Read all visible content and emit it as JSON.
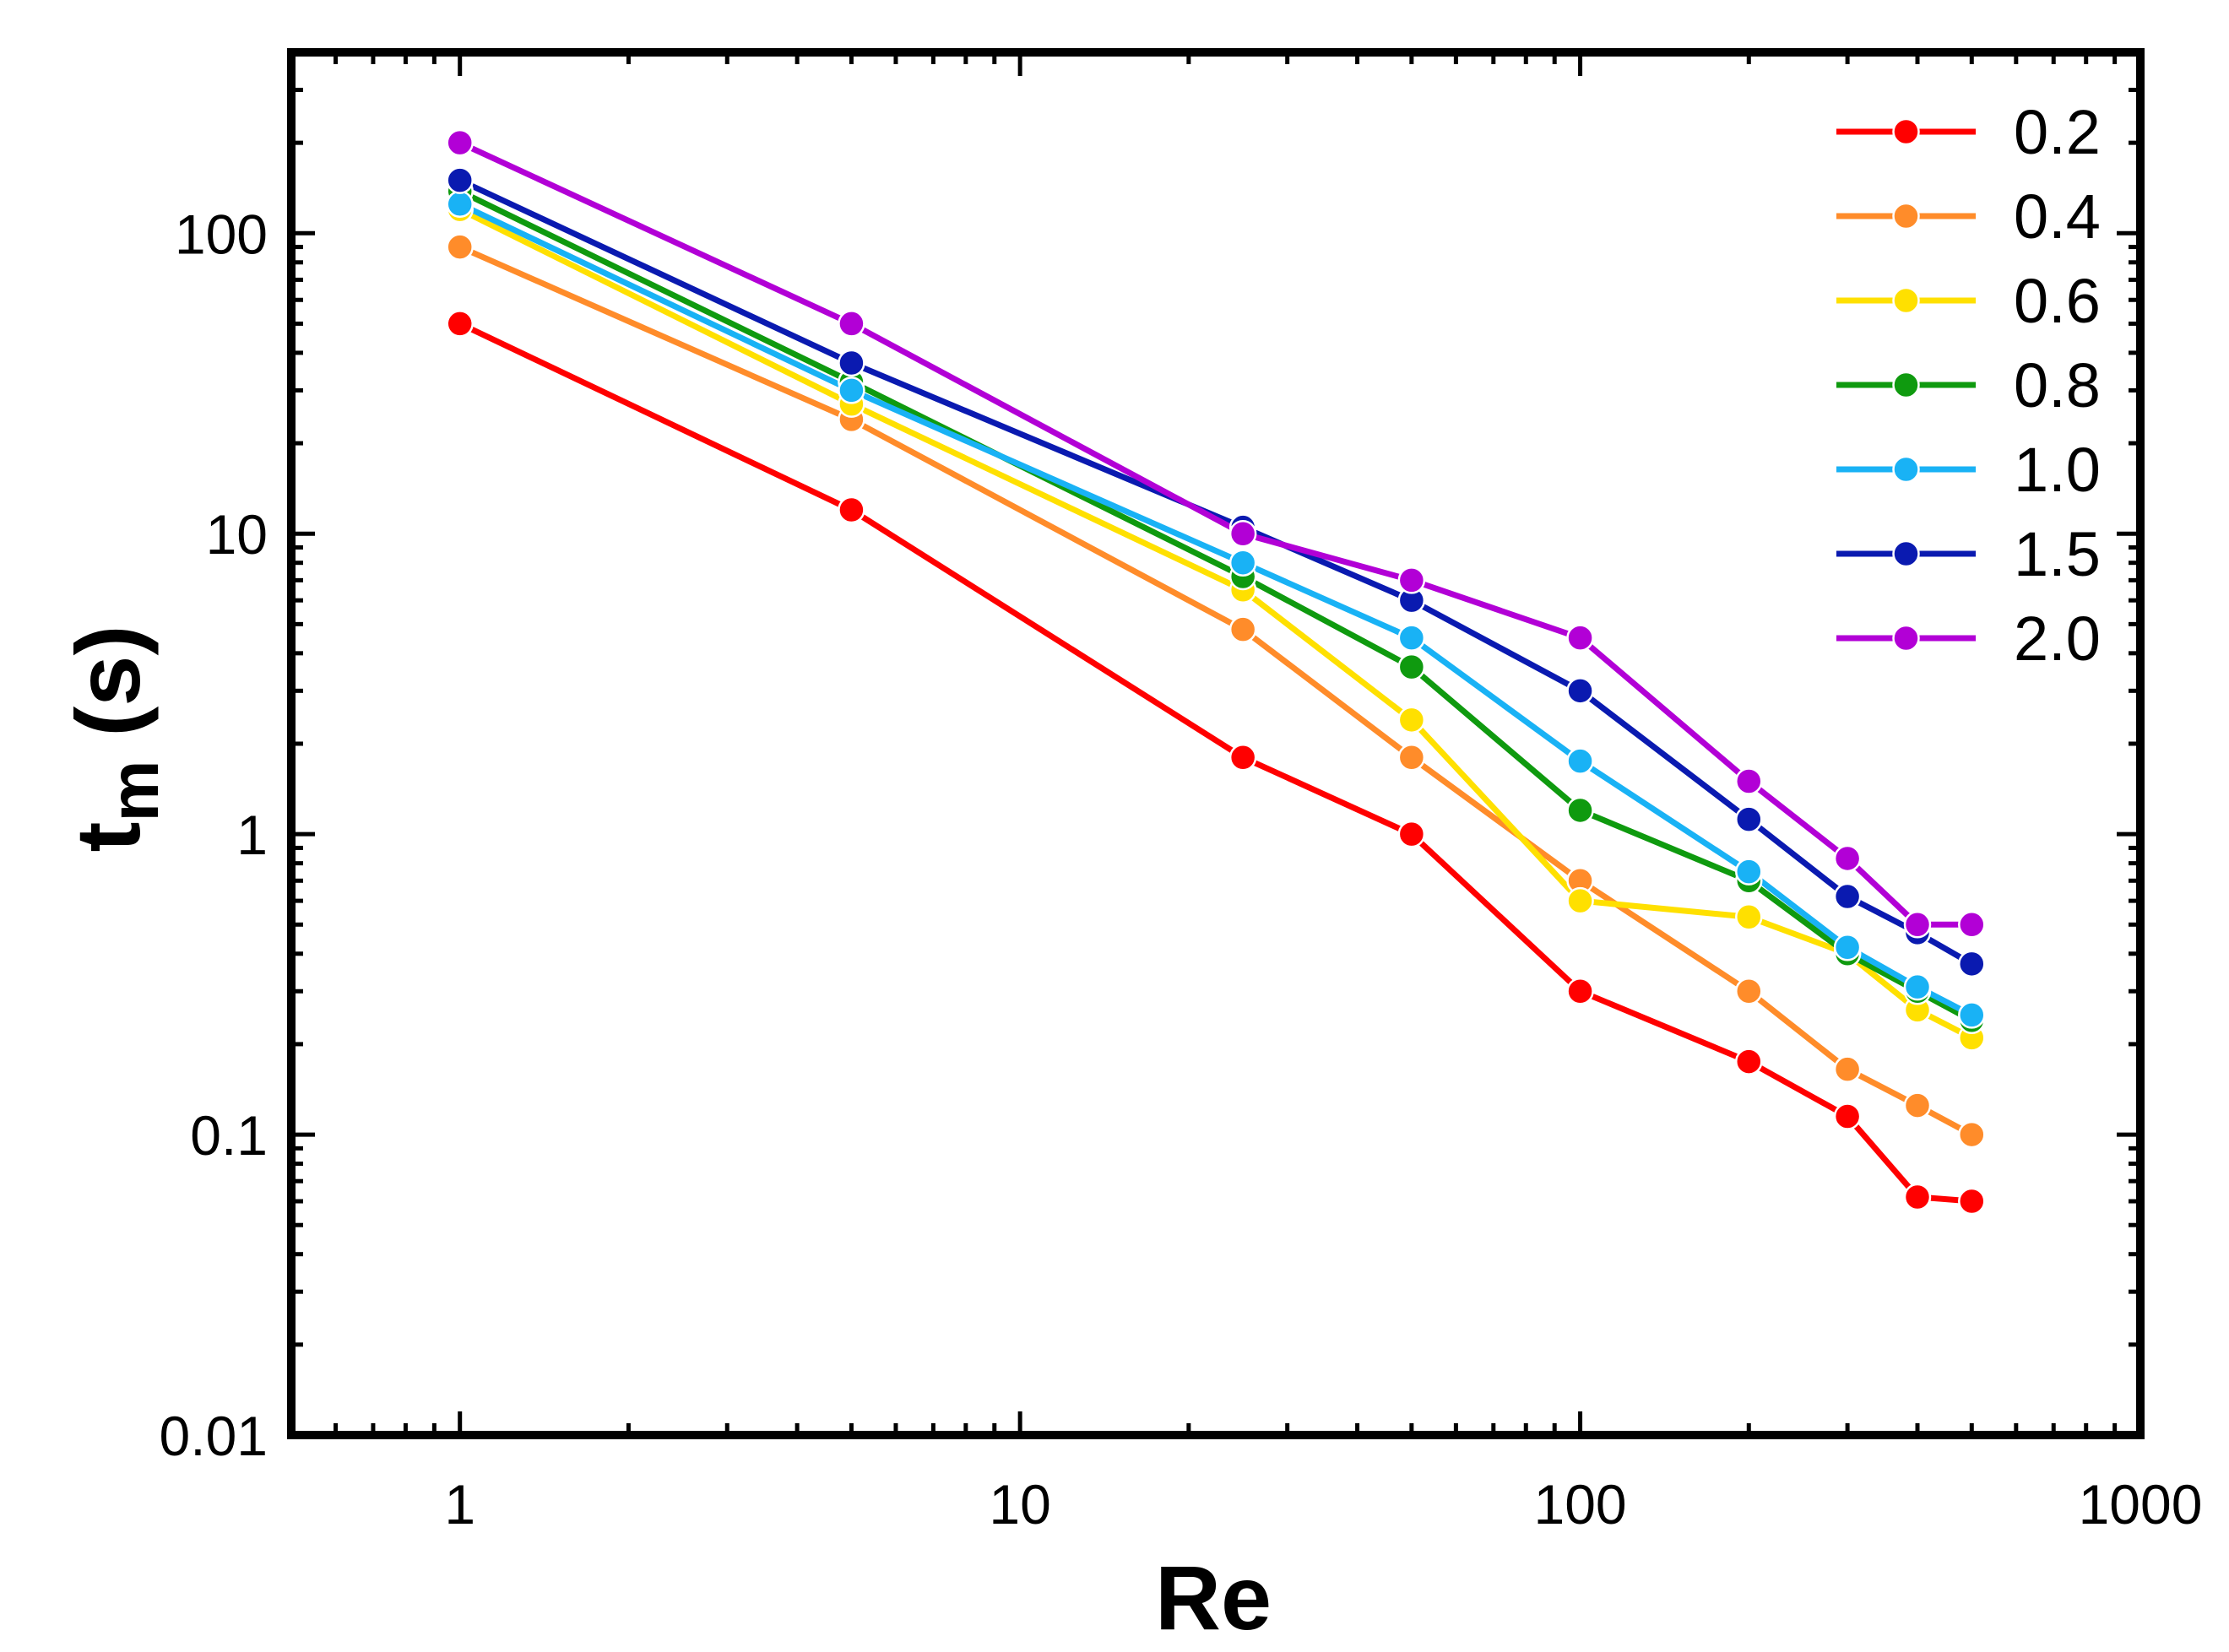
{
  "chart_data": {
    "type": "line",
    "title": "",
    "xlabel": "Re",
    "ylabel_main": "t",
    "ylabel_sub": "m",
    "ylabel_unit": "(s)",
    "xscale": "log",
    "yscale": "log",
    "xlim": [
      0.5,
      1000
    ],
    "ylim": [
      0.01,
      400
    ],
    "x_ticks": [
      1,
      10,
      100,
      1000
    ],
    "x_tick_labels": [
      "1",
      "10",
      "100",
      "1000"
    ],
    "y_ticks": [
      0.01,
      0.1,
      1,
      10,
      100
    ],
    "y_tick_labels": [
      "0.01",
      "0.1",
      "1",
      "10",
      "100"
    ],
    "legend_position": "top-right",
    "x": [
      1,
      5,
      25,
      50,
      100,
      200,
      300,
      400,
      500
    ],
    "series": [
      {
        "name": "0.2",
        "color": "#ff0000",
        "values": [
          50,
          12,
          1.8,
          1.0,
          0.3,
          0.175,
          0.115,
          0.062,
          0.06
        ]
      },
      {
        "name": "0.4",
        "color": "#ff8c2a",
        "values": [
          90,
          24,
          4.8,
          1.8,
          0.7,
          0.3,
          0.165,
          0.125,
          0.1
        ]
      },
      {
        "name": "0.6",
        "color": "#ffe000",
        "values": [
          120,
          27,
          6.5,
          2.4,
          0.6,
          0.53,
          0.4,
          0.26,
          0.21
        ]
      },
      {
        "name": "0.8",
        "color": "#0f9a0f",
        "values": [
          138,
          32,
          7.2,
          3.6,
          1.2,
          0.7,
          0.4,
          0.3,
          0.24
        ]
      },
      {
        "name": "1.0",
        "color": "#19b2f5",
        "values": [
          125,
          30,
          8.0,
          4.5,
          1.75,
          0.75,
          0.42,
          0.31,
          0.25
        ]
      },
      {
        "name": "1.5",
        "color": "#0a1ab0",
        "values": [
          150,
          37,
          10.5,
          6.0,
          3.0,
          1.12,
          0.62,
          0.47,
          0.37
        ]
      },
      {
        "name": "2.0",
        "color": "#b200d6",
        "values": [
          200,
          50,
          10.0,
          7.0,
          4.5,
          1.5,
          0.83,
          0.5,
          0.5
        ]
      }
    ]
  }
}
